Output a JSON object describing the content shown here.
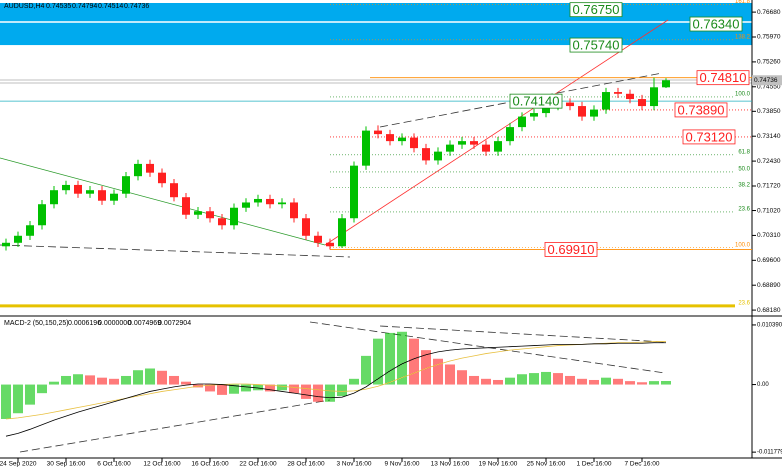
{
  "chart_data": [
    {
      "type": "candlestick",
      "title": "AUDUSD,H4",
      "categories": [
        null,
        "24 Sep 2020",
        null,
        null,
        null,
        "30 Sep 16:00",
        null,
        null,
        null,
        "6 Oct 16:00",
        null,
        null,
        null,
        "12 Oct 16:00",
        null,
        null,
        null,
        "16 Oct 16:00",
        null,
        null,
        null,
        "22 Oct 16:00",
        null,
        null,
        null,
        "28 Oct 16:00",
        null,
        null,
        null,
        "3 Nov 16:00",
        null,
        null,
        null,
        "9 Nov 16:00",
        null,
        null,
        null,
        "13 Nov 16:00",
        null,
        null,
        null,
        "19 Nov 16:00",
        null,
        null,
        null,
        "25 Nov 16:00",
        null,
        null,
        null,
        "1 Dec 16:00",
        null,
        null,
        null,
        "7 Dec 16:00",
        null,
        null
      ],
      "open": [
        0.7,
        0.701,
        0.703,
        0.706,
        0.712,
        0.716,
        0.7175,
        0.715,
        0.716,
        0.713,
        0.715,
        0.72,
        0.7235,
        0.721,
        0.718,
        0.714,
        0.709,
        0.71,
        0.708,
        0.706,
        0.711,
        0.7125,
        0.7135,
        0.712,
        0.7125,
        0.708,
        0.703,
        0.701,
        0.7,
        0.708,
        0.723,
        0.733,
        0.732,
        0.73,
        0.731,
        0.728,
        0.7245,
        0.727,
        0.729,
        0.73,
        0.729,
        0.727,
        0.73,
        0.734,
        0.737,
        0.738,
        0.74,
        0.741,
        0.74,
        0.737,
        0.739,
        0.744,
        0.7435,
        0.742,
        0.74,
        0.74535
      ],
      "high": [
        0.7022,
        0.7042,
        0.7072,
        0.7132,
        0.7172,
        0.7187,
        0.7187,
        0.7172,
        0.7172,
        0.7162,
        0.7212,
        0.7247,
        0.7247,
        0.7222,
        0.7192,
        0.7152,
        0.7112,
        0.7112,
        0.7092,
        0.7122,
        0.7137,
        0.7147,
        0.7147,
        0.7137,
        0.7137,
        0.7092,
        0.7042,
        0.7022,
        0.7092,
        0.7242,
        0.7342,
        0.7345,
        0.7332,
        0.7322,
        0.7322,
        0.7292,
        0.7282,
        0.7302,
        0.7312,
        0.7312,
        0.7302,
        0.7312,
        0.7352,
        0.7382,
        0.7392,
        0.7412,
        0.7422,
        0.7422,
        0.7412,
        0.7402,
        0.7452,
        0.7452,
        0.7447,
        0.7432,
        0.7481,
        0.74794
      ],
      "low": [
        0.6988,
        0.6998,
        0.7018,
        0.7048,
        0.7108,
        0.7148,
        0.7138,
        0.7138,
        0.7118,
        0.7118,
        0.7138,
        0.7188,
        0.7198,
        0.7168,
        0.7128,
        0.7078,
        0.7078,
        0.7068,
        0.7048,
        0.7048,
        0.7098,
        0.7113,
        0.7108,
        0.7108,
        0.7068,
        0.7018,
        0.6998,
        0.6991,
        0.6995,
        0.7068,
        0.7218,
        0.7308,
        0.7288,
        0.7288,
        0.7268,
        0.7233,
        0.7233,
        0.7258,
        0.7278,
        0.7278,
        0.7258,
        0.7258,
        0.7288,
        0.7328,
        0.7358,
        0.7368,
        0.7388,
        0.7388,
        0.7358,
        0.7358,
        0.7378,
        0.7423,
        0.7408,
        0.7388,
        0.7388,
        0.74514
      ],
      "close": [
        0.701,
        0.703,
        0.706,
        0.712,
        0.716,
        0.7175,
        0.715,
        0.716,
        0.713,
        0.715,
        0.72,
        0.7235,
        0.721,
        0.718,
        0.714,
        0.709,
        0.71,
        0.708,
        0.706,
        0.711,
        0.7125,
        0.7135,
        0.712,
        0.7125,
        0.708,
        0.703,
        0.701,
        0.7,
        0.708,
        0.723,
        0.733,
        0.732,
        0.73,
        0.731,
        0.728,
        0.7245,
        0.727,
        0.729,
        0.73,
        0.729,
        0.727,
        0.73,
        0.734,
        0.737,
        0.738,
        0.74,
        0.741,
        0.74,
        0.737,
        0.739,
        0.744,
        0.7435,
        0.742,
        0.74,
        0.74535,
        0.74736
      ],
      "up_color": "#00c000",
      "down_color": "#ff2020",
      "ylim": [
        0.6804,
        0.7694
      ],
      "yticks": [
        {
          "value": 0.7668,
          "label": "0.76680"
        },
        {
          "value": 0.7597,
          "label": "0.75970"
        },
        {
          "value": 0.7526,
          "label": "0.75260"
        },
        {
          "value": 0.7455,
          "label": "0.74550"
        },
        {
          "value": 0.7385,
          "label": "0.73850"
        },
        {
          "value": 0.7314,
          "label": "0.73140"
        },
        {
          "value": 0.7243,
          "label": "0.72430"
        },
        {
          "value": 0.7172,
          "label": "0.71720"
        },
        {
          "value": 0.7102,
          "label": "0.71020"
        },
        {
          "value": 0.7031,
          "label": "0.70310"
        },
        {
          "value": 0.696,
          "label": "0.69600"
        },
        {
          "value": 0.6889,
          "label": "0.68890"
        },
        {
          "value": 0.6818,
          "label": "0.68180"
        }
      ],
      "levels": [
        {
          "value": 0.7675,
          "label": "0.76750",
          "color": "#1a8a1a"
        },
        {
          "value": 0.7634,
          "label": "0.76340",
          "color": "#1a8a1a"
        },
        {
          "value": 0.7574,
          "label": "0.75740",
          "color": "#1a8a1a"
        },
        {
          "value": 0.7481,
          "label": "0.74810",
          "color": "#ff2020"
        },
        {
          "value": 0.7414,
          "label": "0.74140",
          "color": "#1a8a1a"
        },
        {
          "value": 0.7389,
          "label": "0.73890",
          "color": "#ff2020"
        },
        {
          "value": 0.7312,
          "label": "0.73120",
          "color": "#ff2020"
        },
        {
          "value": 0.6991,
          "label": "0.69910",
          "color": "#ff2020"
        }
      ],
      "fib_levels": [
        {
          "value": 0.769,
          "label": "161.8",
          "color": "#ff8c00"
        },
        {
          "value": 0.7589,
          "label": "138.2",
          "color": "#ff8c00"
        },
        {
          "value": 0.7426,
          "label": "100.0",
          "color": "#1a8a1a"
        },
        {
          "value": 0.7261,
          "label": "61.8",
          "color": "#1a8a1a"
        },
        {
          "value": 0.7212,
          "label": "50.0",
          "color": "#1a8a1a"
        },
        {
          "value": 0.7167,
          "label": "38.2",
          "color": "#1a8a1a"
        },
        {
          "value": 0.7098,
          "label": "23.6",
          "color": "#1a8a1a"
        },
        {
          "value": 0.6996,
          "label": "100.0",
          "color": "#ff8c00"
        },
        {
          "value": 0.683,
          "label": "23.6",
          "color": "#e6c200"
        }
      ]
    },
    {
      "type": "macd",
      "title": "MACD-2 (50,150,25)",
      "header_value": {
        "value": 0,
        "label": "0.0000000"
      },
      "series": [
        {
          "color": "#00c000",
          "down_color": "#ff2020",
          "values": [
            -0.006,
            -0.005,
            -0.0035,
            -0.0015,
            0.0005,
            0.0015,
            0.0018,
            0.0016,
            0.0012,
            0.001,
            0.0015,
            0.0025,
            0.0028,
            0.0024,
            0.0015,
            0.0005,
            -0.0005,
            -0.0012,
            -0.0018,
            -0.0016,
            -0.0012,
            -0.001,
            -0.0012,
            -0.001,
            -0.0015,
            -0.0025,
            -0.003,
            -0.003,
            -0.002,
            0.001,
            0.005,
            0.008,
            0.009,
            0.0092,
            0.008,
            0.006,
            0.0045,
            0.0035,
            0.0025,
            0.0015,
            0.001,
            0.0008,
            0.0012,
            0.0018,
            0.002,
            0.0022,
            0.002,
            0.0015,
            0.001,
            0.0008,
            0.0012,
            0.001,
            0.0006,
            0.0004,
            0.0006,
            0.0006196
          ]
        },
        {
          "color": "#e8c040",
          "values": [
            -0.006,
            -0.0058,
            -0.0055,
            -0.0052,
            -0.0048,
            -0.0044,
            -0.004,
            -0.0036,
            -0.0032,
            -0.0028,
            -0.0024,
            -0.002,
            -0.0016,
            -0.0012,
            -0.0009,
            -0.0006,
            -0.0003,
            -0.0001,
            0.0,
            0.0001,
            0.0001,
            0.0,
            -0.0001,
            -0.0003,
            -0.0005,
            -0.0007,
            -0.0009,
            -0.0011,
            -0.0012,
            -0.0011,
            -0.0008,
            -0.0003,
            0.0004,
            0.0012,
            0.002,
            0.0028,
            0.0035,
            0.0041,
            0.0046,
            0.005,
            0.0054,
            0.0057,
            0.006,
            0.0062,
            0.0064,
            0.0066,
            0.0068,
            0.0069,
            0.007,
            0.0071,
            0.0072,
            0.0073,
            0.0073,
            0.0074,
            0.0075,
            0.0074969
          ]
        },
        {
          "color": "#000000",
          "values": [
            -0.009,
            -0.0085,
            -0.0078,
            -0.007,
            -0.0062,
            -0.0055,
            -0.0048,
            -0.0042,
            -0.0036,
            -0.003,
            -0.0024,
            -0.0018,
            -0.0012,
            -0.0008,
            -0.0004,
            -0.0001,
            0.0001,
            0.0001,
            0.0,
            -0.0002,
            -0.0004,
            -0.0006,
            -0.0009,
            -0.0012,
            -0.0015,
            -0.0018,
            -0.0021,
            -0.0023,
            -0.0022,
            -0.0015,
            -0.0004,
            0.001,
            0.0024,
            0.0036,
            0.0045,
            0.0052,
            0.0057,
            0.006,
            0.0062,
            0.0063,
            0.0064,
            0.0065,
            0.0066,
            0.0067,
            0.0068,
            0.0069,
            0.007,
            0.007,
            0.007,
            0.0071,
            0.0071,
            0.0072,
            0.0072,
            0.0072,
            0.0073,
            0.0072904
          ]
        }
      ],
      "ylim": [
        -0.0128,
        0.0116
      ],
      "yticks": [
        0.0103904,
        {
          "value": 0,
          "label": "0.00"
        },
        -0.0117794
      ]
    }
  ]
}
